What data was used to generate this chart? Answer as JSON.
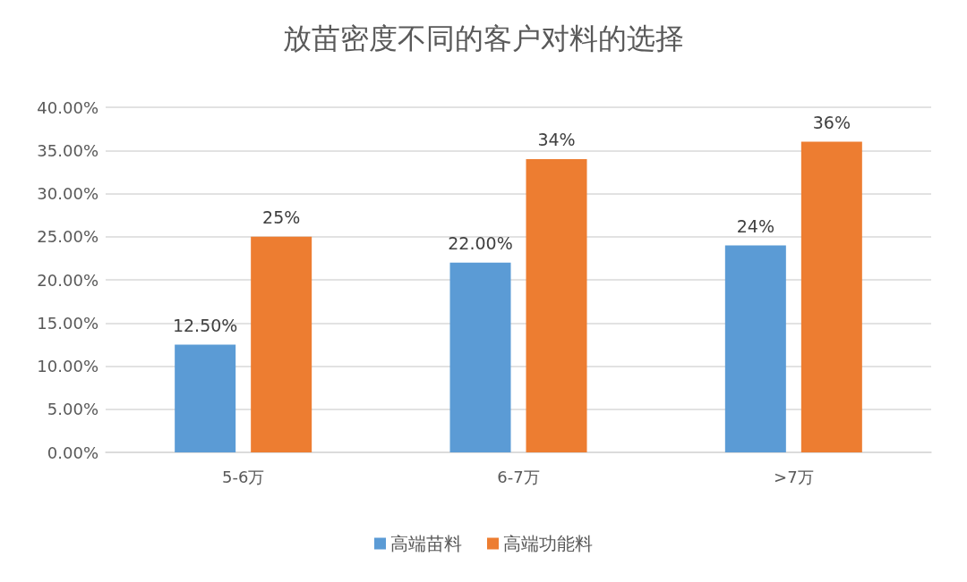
{
  "chart_data": {
    "type": "bar",
    "title": "放苗密度不同的客户对料的选择",
    "categories": [
      "5-6万",
      "6-7万",
      ">7万"
    ],
    "series": [
      {
        "name": "高端苗料",
        "color": "#5b9bd5",
        "values": [
          12.5,
          22,
          24
        ],
        "value_labels": [
          "12.50%",
          "22.00%",
          "24%"
        ]
      },
      {
        "name": "高端功能料",
        "color": "#ed7d31",
        "values": [
          25,
          34,
          36
        ],
        "value_labels": [
          "25%",
          "34%",
          "36%"
        ]
      }
    ],
    "ylim": [
      0,
      40
    ],
    "yticks": [
      {
        "value": 0,
        "label": "0.00%"
      },
      {
        "value": 5,
        "label": "5.00%"
      },
      {
        "value": 10,
        "label": "10.00%"
      },
      {
        "value": 15,
        "label": "15.00%"
      },
      {
        "value": 20,
        "label": "20.00%"
      },
      {
        "value": 25,
        "label": "25.00%"
      },
      {
        "value": 30,
        "label": "30.00%"
      },
      {
        "value": 35,
        "label": "35.00%"
      },
      {
        "value": 40,
        "label": "40.00%"
      }
    ],
    "grid": "y",
    "legend": "bottom"
  }
}
